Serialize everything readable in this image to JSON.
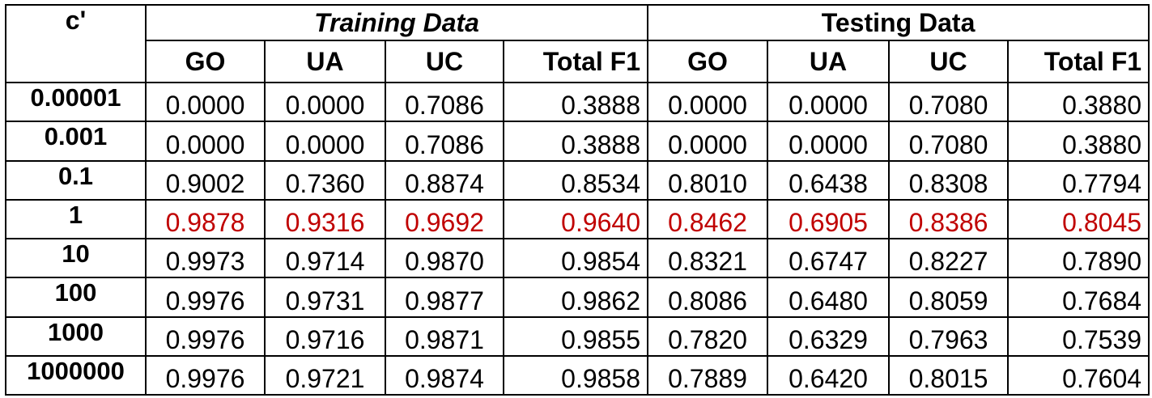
{
  "table": {
    "corner_label": "c'",
    "groups": {
      "training": "Training Data",
      "testing": "Testing Data"
    },
    "columns": [
      "GO",
      "UA",
      "UC",
      "Total F1",
      "GO",
      "UA",
      "UC",
      "Total F1"
    ],
    "highlight_color": "#c00000",
    "rows": [
      {
        "c": "0.00001",
        "values": [
          "0.0000",
          "0.0000",
          "0.7086",
          "0.3888",
          "0.0000",
          "0.0000",
          "0.7080",
          "0.3880"
        ],
        "highlight": false
      },
      {
        "c": "0.001",
        "values": [
          "0.0000",
          "0.0000",
          "0.7086",
          "0.3888",
          "0.0000",
          "0.0000",
          "0.7080",
          "0.3880"
        ],
        "highlight": false
      },
      {
        "c": "0.1",
        "values": [
          "0.9002",
          "0.7360",
          "0.8874",
          "0.8534",
          "0.8010",
          "0.6438",
          "0.8308",
          "0.7794"
        ],
        "highlight": false
      },
      {
        "c": "1",
        "values": [
          "0.9878",
          "0.9316",
          "0.9692",
          "0.9640",
          "0.8462",
          "0.6905",
          "0.8386",
          "0.8045"
        ],
        "highlight": true
      },
      {
        "c": "10",
        "values": [
          "0.9973",
          "0.9714",
          "0.9870",
          "0.9854",
          "0.8321",
          "0.6747",
          "0.8227",
          "0.7890"
        ],
        "highlight": false
      },
      {
        "c": "100",
        "values": [
          "0.9976",
          "0.9731",
          "0.9877",
          "0.9862",
          "0.8086",
          "0.6480",
          "0.8059",
          "0.7684"
        ],
        "highlight": false
      },
      {
        "c": "1000",
        "values": [
          "0.9976",
          "0.9716",
          "0.9871",
          "0.9855",
          "0.7820",
          "0.6329",
          "0.7963",
          "0.7539"
        ],
        "highlight": false
      },
      {
        "c": "1000000",
        "values": [
          "0.9976",
          "0.9721",
          "0.9874",
          "0.9858",
          "0.7889",
          "0.6420",
          "0.8015",
          "0.7604"
        ],
        "highlight": false
      }
    ]
  }
}
